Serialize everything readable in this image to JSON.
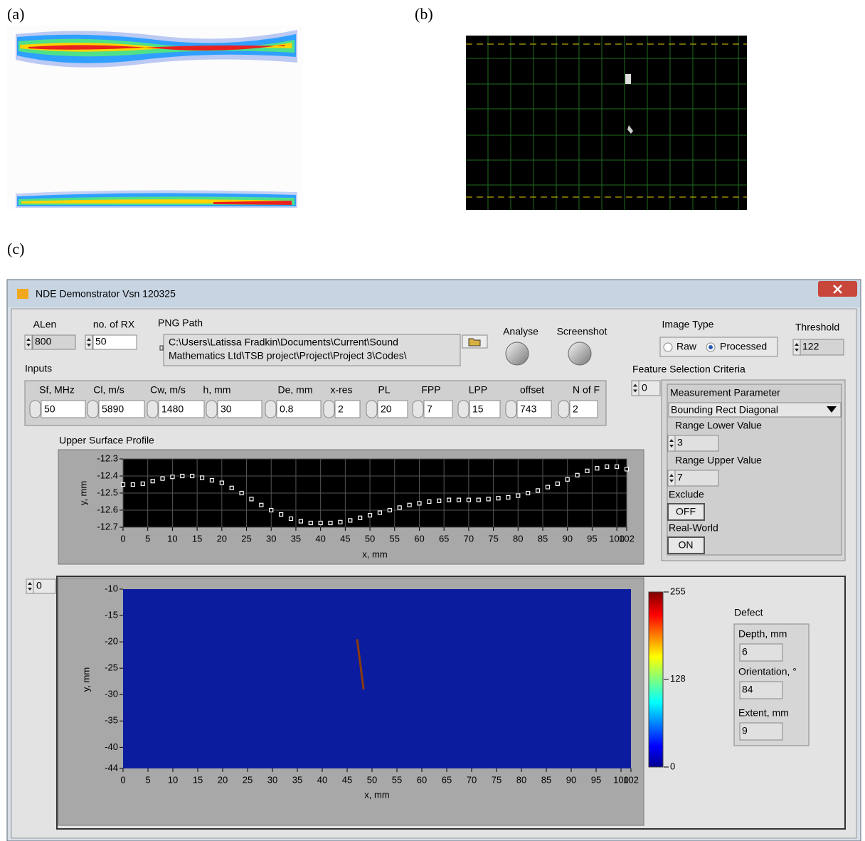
{
  "figure_labels": [
    "(a)",
    "(b)",
    "(c)"
  ],
  "window": {
    "title": "NDE  Demonstrator   Vsn 120325"
  },
  "alen": {
    "label": "ALen",
    "value": 800
  },
  "no_of_rx": {
    "label": "no. of RX",
    "value": 50
  },
  "png_path": {
    "label": "PNG Path",
    "value_lines": [
      "C:\\Users\\Latissa Fradkin\\Documents\\Current\\Sound",
      "Mathematics Ltd\\TSB project\\Project\\Project 3\\Codes\\"
    ]
  },
  "buttons": [
    "Analyse",
    "Screenshot"
  ],
  "image_type": {
    "label": "Image Type",
    "options": [
      "Raw",
      "Processed"
    ],
    "selected": 1
  },
  "threshold": {
    "label": "Threshold",
    "value": 122
  },
  "inputs": {
    "label": "Inputs",
    "fields": [
      {
        "label": "Sf, MHz",
        "value": 50
      },
      {
        "label": "Cl, m/s",
        "value": 5890
      },
      {
        "label": "Cw, m/s",
        "value": 1480
      },
      {
        "label": "h, mm",
        "value": 30
      },
      {
        "label": "De, mm",
        "value": 0.8
      },
      {
        "label": "x-res",
        "value": 2
      },
      {
        "label": "PL",
        "value": 20
      },
      {
        "label": "FPP",
        "value": 7
      },
      {
        "label": "LPP",
        "value": 15
      },
      {
        "label": "offset",
        "value": 743
      },
      {
        "label": "N of F",
        "value": 2
      }
    ]
  },
  "feature_selection": {
    "label": "Feature Selection Criteria",
    "index": 0,
    "measurement_parameter": {
      "label": "Measurement Parameter",
      "value": "Bounding Rect Diagonal"
    },
    "range_lower": {
      "label": "Range Lower Value",
      "value": 3
    },
    "range_upper": {
      "label": "Range Upper Value",
      "value": 7
    },
    "exclude": {
      "label": "Exclude",
      "value": "OFF"
    },
    "real_world": {
      "label": "Real-World",
      "value": "ON"
    }
  },
  "image_index": 0,
  "defect": {
    "label": "Defect",
    "fields": [
      {
        "label": "Depth, mm",
        "value": 6
      },
      {
        "label": "Orientation, °",
        "value": 84
      },
      {
        "label": "Extent, mm",
        "value": 9
      }
    ]
  },
  "chart_data": [
    {
      "type": "scatter",
      "title": "Upper Surface Profile",
      "x_label": "x, mm",
      "y_label": "y, mm",
      "x": [
        0,
        2,
        4,
        6,
        8,
        10,
        12,
        14,
        16,
        18,
        20,
        22,
        24,
        26,
        28,
        30,
        32,
        34,
        36,
        38,
        40,
        42,
        44,
        46,
        48,
        50,
        52,
        54,
        56,
        58,
        60,
        62,
        64,
        66,
        68,
        70,
        72,
        74,
        76,
        78,
        80,
        82,
        84,
        86,
        88,
        90,
        92,
        94,
        96,
        98,
        100,
        102
      ],
      "values": [
        -12.45,
        -12.45,
        -12.445,
        -12.43,
        -12.415,
        -12.405,
        -12.4,
        -12.4,
        -12.41,
        -12.425,
        -12.44,
        -12.47,
        -12.5,
        -12.535,
        -12.57,
        -12.6,
        -12.625,
        -12.65,
        -12.665,
        -12.675,
        -12.675,
        -12.675,
        -12.67,
        -12.66,
        -12.645,
        -12.63,
        -12.615,
        -12.6,
        -12.585,
        -12.57,
        -12.56,
        -12.55,
        -12.545,
        -12.54,
        -12.54,
        -12.54,
        -12.54,
        -12.535,
        -12.53,
        -12.525,
        -12.515,
        -12.5,
        -12.485,
        -12.465,
        -12.445,
        -12.42,
        -12.395,
        -12.37,
        -12.355,
        -12.345,
        -12.345,
        -12.36
      ],
      "color": "#ffffff",
      "marker": "square",
      "xlim": [
        0,
        102
      ],
      "xticks": [
        0,
        5,
        10,
        15,
        20,
        25,
        30,
        35,
        40,
        45,
        50,
        55,
        60,
        65,
        70,
        75,
        80,
        85,
        90,
        95,
        100,
        102
      ],
      "ylim": [
        -12.7,
        -12.3
      ],
      "yticks": [
        -12.3,
        -12.4,
        -12.5,
        -12.6,
        -12.7
      ],
      "grid": true
    },
    {
      "type": "image",
      "x_label": "x, mm",
      "y_label": "y, mm",
      "x": [
        47,
        48.3
      ],
      "values": [
        -19.5,
        -29
      ],
      "color": "#8a3c0c",
      "background": "#0b1c9e",
      "xlim": [
        0,
        102
      ],
      "xticks": [
        0,
        5,
        10,
        15,
        20,
        25,
        30,
        35,
        40,
        45,
        50,
        55,
        60,
        65,
        70,
        75,
        80,
        85,
        90,
        95,
        100,
        102
      ],
      "ylim": [
        -44,
        -10
      ],
      "yticks": [
        -10,
        -15,
        -20,
        -25,
        -30,
        -35,
        -40,
        -44
      ],
      "grid": false,
      "colorbar": {
        "lim": [
          0,
          255
        ],
        "ticks": [
          0,
          128,
          255
        ]
      }
    }
  ]
}
